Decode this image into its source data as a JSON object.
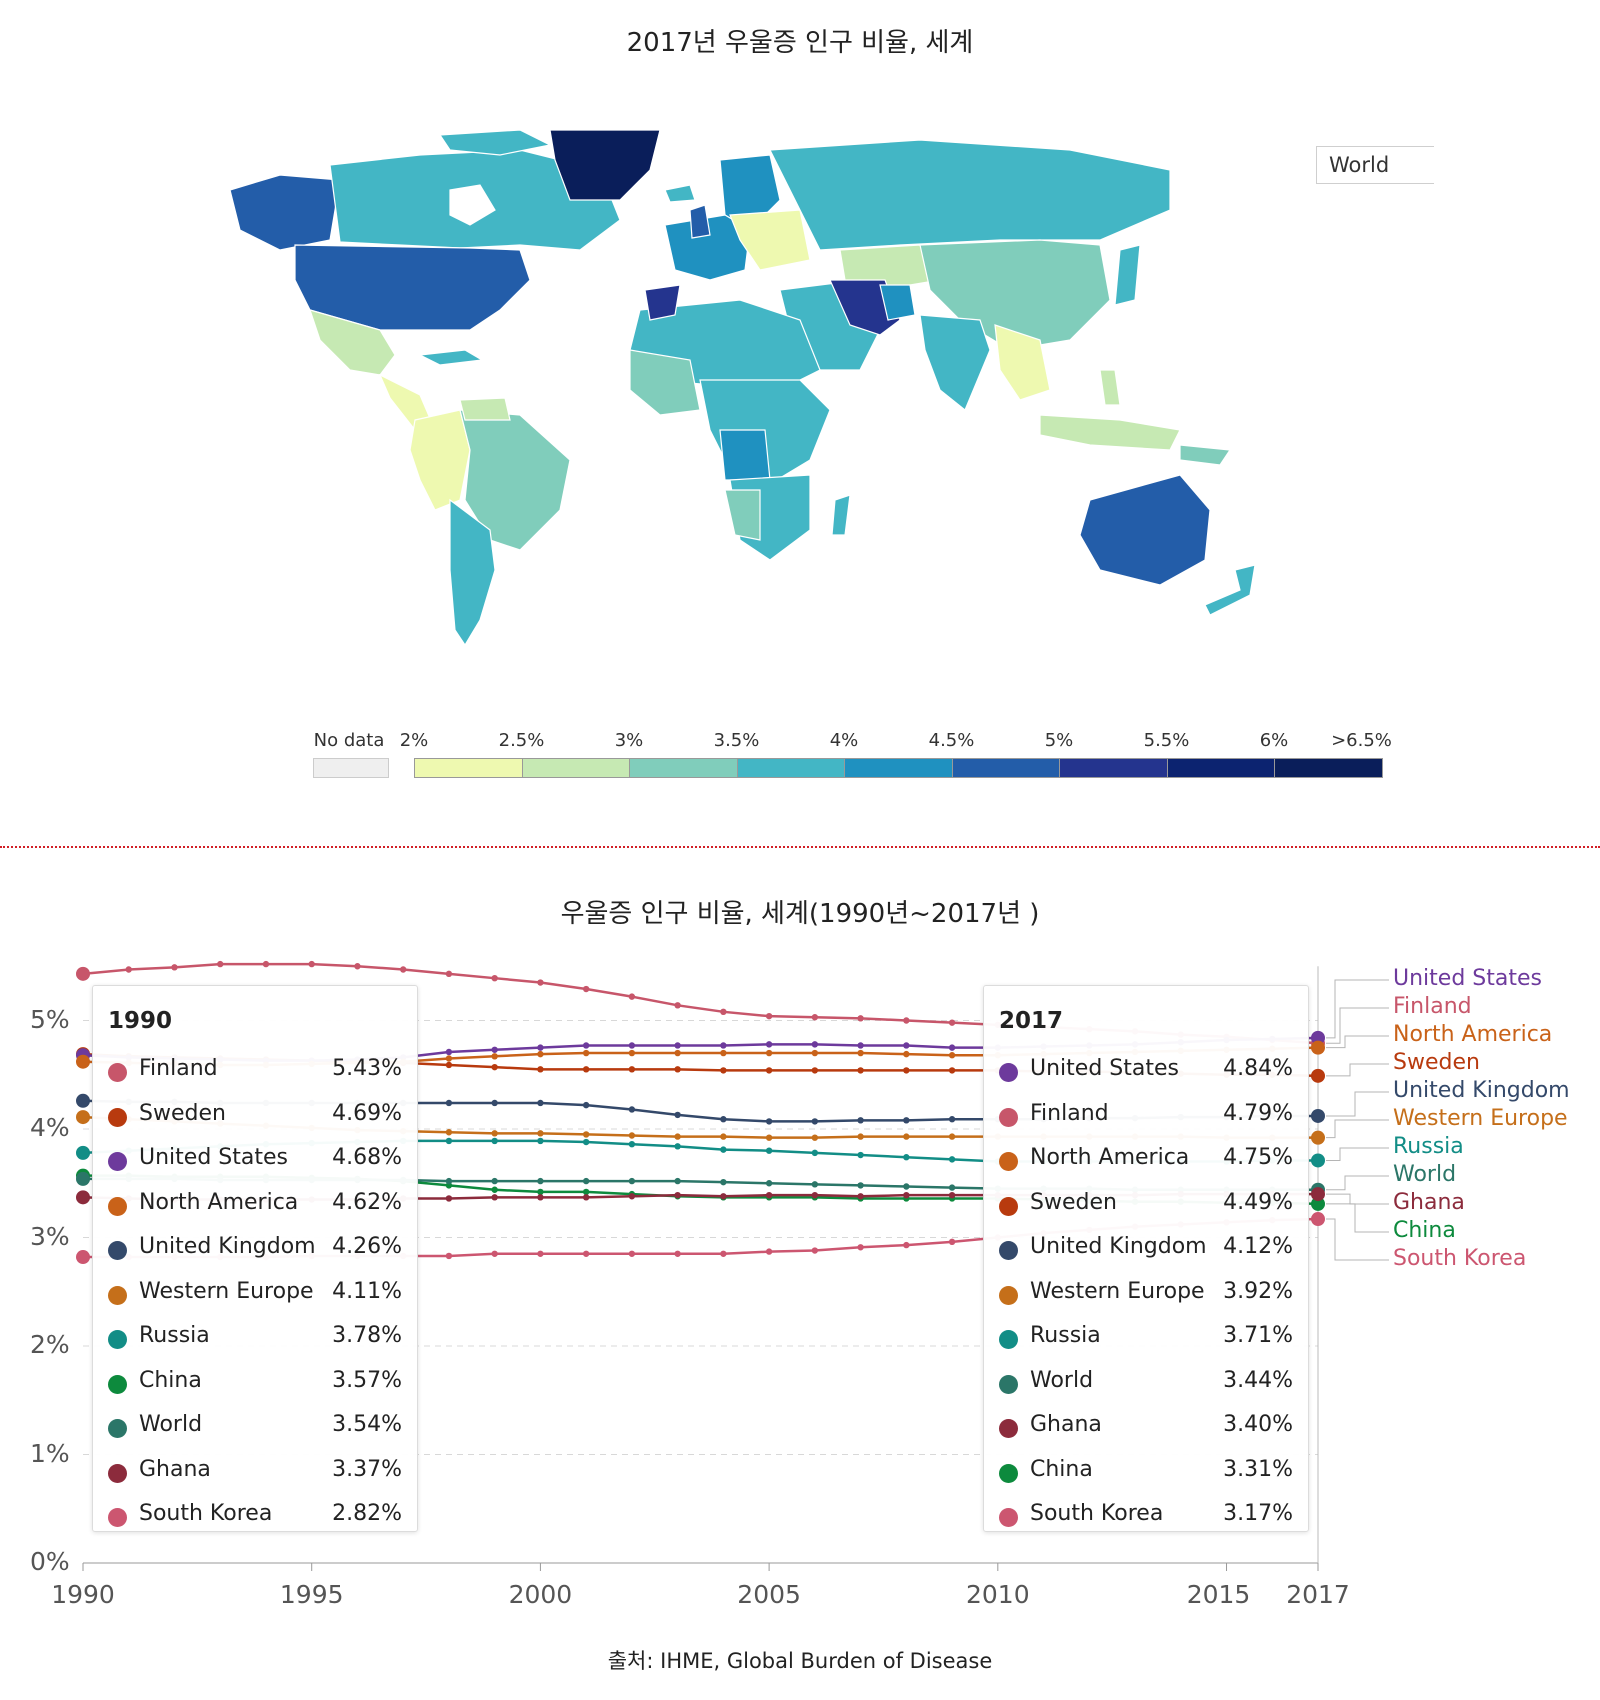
{
  "map": {
    "title": "2017년 우울증 인구 비율, 세계",
    "region_selector": "World",
    "colors": {
      "land_fill_default": "#45b6c7",
      "border": "#ffffff",
      "no_data": "#efefef"
    }
  },
  "legend": {
    "no_data_label": "No data",
    "no_data_color": "#efefef",
    "ticks": [
      "2%",
      "2.5%",
      "3%",
      "3.5%",
      "4%",
      "4.5%",
      "5%",
      "5.5%",
      "6%",
      ">6.5%"
    ],
    "colors": [
      "#eef9b0",
      "#c6e9b3",
      "#80cdbb",
      "#43b6c5",
      "#1f91c0",
      "#235da9",
      "#24348e",
      "#0c2370",
      "#0a1e5a"
    ]
  },
  "chart_data": {
    "type": "line",
    "title": "우울증 인구 비율, 세계(1990년~2017년 )",
    "xlabel": "",
    "ylabel": "",
    "x": [
      1990,
      1991,
      1992,
      1993,
      1994,
      1995,
      1996,
      1997,
      1998,
      1999,
      2000,
      2001,
      2002,
      2003,
      2004,
      2005,
      2006,
      2007,
      2008,
      2009,
      2010,
      2011,
      2012,
      2013,
      2014,
      2015,
      2016,
      2017
    ],
    "xticks": [
      1990,
      1995,
      2000,
      2005,
      2010,
      2015,
      2017
    ],
    "yticks": [
      "0%",
      "1%",
      "2%",
      "3%",
      "4%",
      "5%"
    ],
    "ylim": [
      0,
      5.5
    ],
    "grid": true,
    "series": [
      {
        "name": "Finland",
        "color": "#c7566a",
        "values": [
          5.43,
          5.47,
          5.49,
          5.52,
          5.52,
          5.52,
          5.5,
          5.47,
          5.43,
          5.39,
          5.35,
          5.29,
          5.22,
          5.14,
          5.08,
          5.04,
          5.03,
          5.02,
          5.0,
          4.98,
          4.96,
          4.94,
          4.92,
          4.9,
          4.87,
          4.85,
          4.82,
          4.79
        ]
      },
      {
        "name": "Sweden",
        "color": "#b83a0e",
        "values": [
          4.69,
          4.67,
          4.66,
          4.65,
          4.64,
          4.63,
          4.62,
          4.61,
          4.59,
          4.57,
          4.55,
          4.55,
          4.55,
          4.55,
          4.54,
          4.54,
          4.54,
          4.54,
          4.54,
          4.54,
          4.54,
          4.53,
          4.53,
          4.52,
          4.51,
          4.5,
          4.5,
          4.49
        ]
      },
      {
        "name": "United States",
        "color": "#6d3a9c",
        "values": [
          4.68,
          4.66,
          4.65,
          4.64,
          4.63,
          4.63,
          4.64,
          4.66,
          4.71,
          4.73,
          4.75,
          4.77,
          4.77,
          4.77,
          4.77,
          4.78,
          4.78,
          4.77,
          4.77,
          4.75,
          4.75,
          4.76,
          4.77,
          4.78,
          4.8,
          4.82,
          4.83,
          4.84
        ]
      },
      {
        "name": "North America",
        "color": "#c96219",
        "values": [
          4.62,
          4.61,
          4.6,
          4.59,
          4.59,
          4.6,
          4.61,
          4.62,
          4.65,
          4.67,
          4.69,
          4.7,
          4.7,
          4.7,
          4.7,
          4.7,
          4.7,
          4.7,
          4.69,
          4.68,
          4.68,
          4.69,
          4.7,
          4.71,
          4.72,
          4.73,
          4.74,
          4.75
        ]
      },
      {
        "name": "United Kingdom",
        "color": "#34496a",
        "values": [
          4.26,
          4.25,
          4.25,
          4.24,
          4.24,
          4.24,
          4.24,
          4.24,
          4.24,
          4.24,
          4.24,
          4.22,
          4.18,
          4.13,
          4.09,
          4.07,
          4.07,
          4.08,
          4.08,
          4.09,
          4.09,
          4.09,
          4.1,
          4.1,
          4.11,
          4.11,
          4.12,
          4.12
        ]
      },
      {
        "name": "Western Europe",
        "color": "#c56f1a",
        "values": [
          4.11,
          4.09,
          4.07,
          4.05,
          4.03,
          4.01,
          3.99,
          3.98,
          3.97,
          3.96,
          3.96,
          3.95,
          3.94,
          3.93,
          3.93,
          3.92,
          3.92,
          3.93,
          3.93,
          3.93,
          3.93,
          3.93,
          3.93,
          3.93,
          3.93,
          3.92,
          3.92,
          3.92
        ]
      },
      {
        "name": "Russia",
        "color": "#128d86",
        "values": [
          3.78,
          3.8,
          3.82,
          3.84,
          3.86,
          3.87,
          3.88,
          3.89,
          3.89,
          3.89,
          3.89,
          3.88,
          3.86,
          3.84,
          3.81,
          3.8,
          3.78,
          3.76,
          3.74,
          3.72,
          3.7,
          3.7,
          3.7,
          3.7,
          3.7,
          3.7,
          3.71,
          3.71
        ]
      },
      {
        "name": "China",
        "color": "#0d8a3d",
        "values": [
          3.57,
          3.57,
          3.56,
          3.56,
          3.56,
          3.55,
          3.54,
          3.52,
          3.48,
          3.44,
          3.42,
          3.42,
          3.4,
          3.38,
          3.37,
          3.37,
          3.37,
          3.36,
          3.36,
          3.36,
          3.36,
          3.35,
          3.34,
          3.33,
          3.33,
          3.32,
          3.32,
          3.31
        ]
      },
      {
        "name": "World",
        "color": "#2b7668",
        "values": [
          3.54,
          3.54,
          3.54,
          3.53,
          3.53,
          3.53,
          3.53,
          3.53,
          3.52,
          3.52,
          3.52,
          3.52,
          3.52,
          3.52,
          3.51,
          3.5,
          3.49,
          3.48,
          3.47,
          3.46,
          3.45,
          3.45,
          3.45,
          3.44,
          3.44,
          3.44,
          3.44,
          3.44
        ]
      },
      {
        "name": "Ghana",
        "color": "#8c2b3c",
        "values": [
          3.37,
          3.36,
          3.35,
          3.35,
          3.35,
          3.35,
          3.35,
          3.36,
          3.36,
          3.37,
          3.37,
          3.37,
          3.38,
          3.39,
          3.38,
          3.39,
          3.39,
          3.38,
          3.39,
          3.39,
          3.39,
          3.39,
          3.39,
          3.39,
          3.4,
          3.4,
          3.4,
          3.4
        ]
      },
      {
        "name": "South Korea",
        "color": "#cc5670",
        "values": [
          2.82,
          2.82,
          2.82,
          2.82,
          2.82,
          2.83,
          2.83,
          2.83,
          2.83,
          2.85,
          2.85,
          2.85,
          2.85,
          2.85,
          2.85,
          2.87,
          2.88,
          2.91,
          2.93,
          2.96,
          3.0,
          3.04,
          3.07,
          3.1,
          3.12,
          3.14,
          3.16,
          3.17
        ]
      }
    ],
    "tooltip_1990": {
      "header": "1990",
      "rows": [
        {
          "name": "Finland",
          "value": "5.43%",
          "color": "#c7566a"
        },
        {
          "name": "Sweden",
          "value": "4.69%",
          "color": "#b83a0e"
        },
        {
          "name": "United States",
          "value": "4.68%",
          "color": "#6d3a9c"
        },
        {
          "name": "North America",
          "value": "4.62%",
          "color": "#c96219"
        },
        {
          "name": "United Kingdom",
          "value": "4.26%",
          "color": "#34496a"
        },
        {
          "name": "Western Europe",
          "value": "4.11%",
          "color": "#c56f1a"
        },
        {
          "name": "Russia",
          "value": "3.78%",
          "color": "#128d86"
        },
        {
          "name": "China",
          "value": "3.57%",
          "color": "#0d8a3d"
        },
        {
          "name": "World",
          "value": "3.54%",
          "color": "#2b7668"
        },
        {
          "name": "Ghana",
          "value": "3.37%",
          "color": "#8c2b3c"
        },
        {
          "name": "South Korea",
          "value": "2.82%",
          "color": "#cc5670"
        }
      ]
    },
    "tooltip_2017": {
      "header": "2017",
      "rows": [
        {
          "name": "United States",
          "value": "4.84%",
          "color": "#6d3a9c"
        },
        {
          "name": "Finland",
          "value": "4.79%",
          "color": "#c7566a"
        },
        {
          "name": "North America",
          "value": "4.75%",
          "color": "#c96219"
        },
        {
          "name": "Sweden",
          "value": "4.49%",
          "color": "#b83a0e"
        },
        {
          "name": "United Kingdom",
          "value": "4.12%",
          "color": "#34496a"
        },
        {
          "name": "Western Europe",
          "value": "3.92%",
          "color": "#c56f1a"
        },
        {
          "name": "Russia",
          "value": "3.71%",
          "color": "#128d86"
        },
        {
          "name": "World",
          "value": "3.44%",
          "color": "#2b7668"
        },
        {
          "name": "Ghana",
          "value": "3.40%",
          "color": "#8c2b3c"
        },
        {
          "name": "China",
          "value": "3.31%",
          "color": "#0d8a3d"
        },
        {
          "name": "South Korea",
          "value": "3.17%",
          "color": "#cc5670"
        }
      ]
    },
    "end_labels": [
      {
        "name": "United States",
        "color": "#6d3a9c"
      },
      {
        "name": "Finland",
        "color": "#c7566a"
      },
      {
        "name": "North America",
        "color": "#c96219"
      },
      {
        "name": "Sweden",
        "color": "#b83a0e"
      },
      {
        "name": "United Kingdom",
        "color": "#34496a"
      },
      {
        "name": "Western Europe",
        "color": "#c56f1a"
      },
      {
        "name": "Russia",
        "color": "#128d86"
      },
      {
        "name": "World",
        "color": "#2b7668"
      },
      {
        "name": "Ghana",
        "color": "#8c2b3c"
      },
      {
        "name": "China",
        "color": "#0d8a3d"
      },
      {
        "name": "South Korea",
        "color": "#cc5670"
      }
    ]
  },
  "source": "출처: IHME, Global Burden of Disease"
}
